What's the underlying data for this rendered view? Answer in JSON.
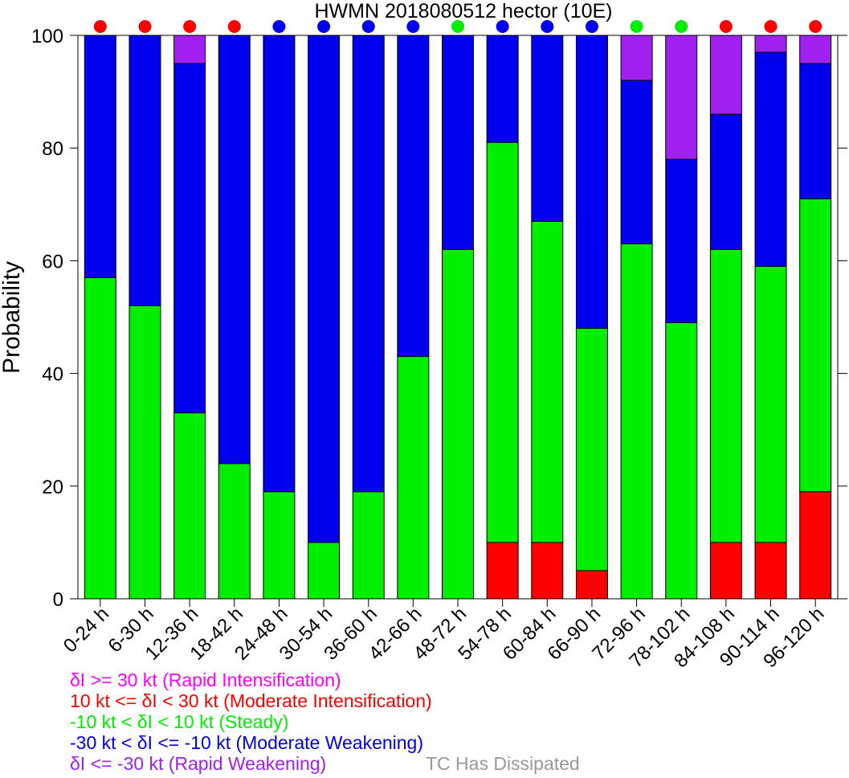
{
  "chart_data": {
    "type": "bar",
    "stacked": true,
    "title": "HWMN 2018080512 hector (10E)",
    "xlabel": "",
    "ylabel": "Probability",
    "ylim": [
      0,
      100
    ],
    "yticks": [
      0,
      20,
      40,
      60,
      80,
      100
    ],
    "grid": false,
    "categories": [
      "0-24 h",
      "6-30 h",
      "12-36 h",
      "18-42 h",
      "24-48 h",
      "30-54 h",
      "36-60 h",
      "42-66 h",
      "48-72 h",
      "54-78 h",
      "60-84 h",
      "66-90 h",
      "72-96 h",
      "78-102 h",
      "84-108 h",
      "90-114 h",
      "96-120 h"
    ],
    "series": [
      {
        "key": "mi",
        "color": "#ff0000",
        "values": [
          0,
          0,
          0,
          0,
          0,
          0,
          0,
          0,
          0,
          10,
          10,
          5,
          0,
          0,
          10,
          10,
          19
        ]
      },
      {
        "key": "st",
        "color": "#00ee00",
        "values": [
          57,
          52,
          33,
          24,
          19,
          10,
          19,
          43,
          62,
          71,
          57,
          43,
          63,
          49,
          52,
          49,
          52
        ]
      },
      {
        "key": "mw",
        "color": "#0000ee",
        "values": [
          43,
          48,
          62,
          76,
          81,
          90,
          81,
          57,
          38,
          19,
          33,
          52,
          29,
          29,
          24,
          38,
          24
        ]
      },
      {
        "key": "rw",
        "color": "#a020f0",
        "values": [
          0,
          0,
          5,
          0,
          0,
          0,
          0,
          0,
          0,
          0,
          0,
          0,
          8,
          22,
          14,
          3,
          5
        ]
      }
    ],
    "top_markers": [
      "#ff0000",
      "#ff0000",
      "#ff0000",
      "#ff0000",
      "#0000ee",
      "#0000ee",
      "#0000ee",
      "#0000ee",
      "#00ee00",
      "#0000ee",
      "#0000ee",
      "#0000ee",
      "#00ee00",
      "#00ee00",
      "#ff0000",
      "#ff0000",
      "#ff0000"
    ]
  },
  "legend": [
    {
      "text": "δI >= 30 kt (Rapid Intensification)",
      "color": "#ff00ff"
    },
    {
      "text": "10 kt <= δI < 30 kt (Moderate Intensification)",
      "color": "#ff0000"
    },
    {
      "text": "-10 kt < δI < 10 kt (Steady)",
      "color": "#00ee00"
    },
    {
      "text": "-30 kt < δI <= -10 kt (Moderate Weakening)",
      "color": "#0000ee"
    },
    {
      "text": "δI <= -30 kt (Rapid Weakening)",
      "color": "#a020f0"
    }
  ],
  "dissipated_note": {
    "text": "TC Has Dissipated",
    "color": "#999999"
  }
}
